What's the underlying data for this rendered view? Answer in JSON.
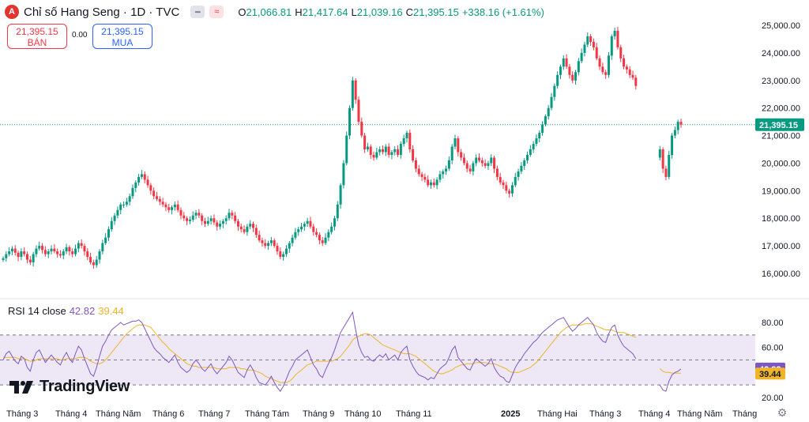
{
  "header": {
    "logo_letter": "A",
    "title": "Chỉ số Hang Seng · 1D · TVC",
    "btn1": "━",
    "btn2": "≈",
    "o_label": "O",
    "o": "21,066.81",
    "h_label": "H",
    "h": "21,417.64",
    "l_label": "L",
    "l": "21,039.16",
    "c_label": "C",
    "c": "21,395.15",
    "chg": "+338.16 (+1.61%)"
  },
  "sell": {
    "price": "21,395.15",
    "label": "BÁN"
  },
  "buy": {
    "price": "21,395.15",
    "label": "MUA"
  },
  "spread": "0.00",
  "rsi": {
    "label": "RSI 14 close",
    "value": "42.82",
    "ma": "39.44"
  },
  "brand": "TradingView",
  "colors": {
    "up": "#089981",
    "down": "#f23645",
    "rsi": "#7e57c2",
    "rsi_ma": "#f0b429",
    "band": "#ede7f6",
    "accent": "#2962ff"
  },
  "chart_data": [
    {
      "type": "candlestick",
      "title": "",
      "ylim": [
        15500,
        25300
      ],
      "y_ticks": [
        16000,
        17000,
        18000,
        19000,
        20000,
        21000,
        22000,
        23000,
        24000,
        25000
      ],
      "y_tick_labels": [
        "16,000.00",
        "17,000.00",
        "18,000.00",
        "19,000.00",
        "20,000.00",
        "21,000.00",
        "22,000.00",
        "23,000.00",
        "24,000.00",
        "25,000.00"
      ],
      "last_price": 21395.15,
      "last_price_label": "21,395.15",
      "x_labels": [
        "Tháng 3",
        "Tháng 4",
        "Tháng Năm",
        "Tháng 6",
        "Tháng 7",
        "Tháng Tám",
        "Tháng 9",
        "Tháng 10",
        "Tháng 11",
        "2025",
        "Tháng Hai",
        "Tháng 3",
        "Tháng 4",
        "Tháng Năm",
        "Tháng"
      ],
      "closes": [
        16550,
        16700,
        16800,
        16900,
        16750,
        16600,
        16800,
        16700,
        16500,
        16400,
        16700,
        16900,
        17000,
        16850,
        16700,
        16800,
        16900,
        16800,
        16700,
        16650,
        16800,
        16950,
        16800,
        16700,
        16900,
        17100,
        17000,
        16800,
        16600,
        16400,
        16300,
        16500,
        16800,
        17100,
        17300,
        17600,
        17900,
        18100,
        18300,
        18500,
        18500,
        18600,
        18800,
        19100,
        19300,
        19500,
        19600,
        19400,
        19200,
        19000,
        18800,
        18700,
        18600,
        18500,
        18400,
        18300,
        18400,
        18500,
        18300,
        18100,
        18000,
        17900,
        17950,
        18100,
        18200,
        18100,
        17900,
        17800,
        17900,
        18000,
        17850,
        17700,
        17800,
        17900,
        18000,
        18200,
        18100,
        17900,
        17700,
        17600,
        17500,
        17700,
        17800,
        17650,
        17400,
        17200,
        17100,
        17000,
        17100,
        17200,
        17000,
        16800,
        16600,
        16700,
        16900,
        17100,
        17300,
        17500,
        17600,
        17700,
        17800,
        17900,
        17700,
        17500,
        17400,
        17200,
        17100,
        17300,
        17500,
        17700,
        18000,
        18500,
        19200,
        20000,
        21000,
        22000,
        23000,
        22300,
        21500,
        21000,
        20500,
        20600,
        20300,
        20200,
        20400,
        20500,
        20400,
        20600,
        20300,
        20400,
        20500,
        20300,
        20700,
        20900,
        21100,
        20500,
        20100,
        19800,
        19600,
        19500,
        19400,
        19200,
        19300,
        19200,
        19400,
        19600,
        19700,
        19800,
        20100,
        20600,
        20900,
        20400,
        20200,
        20000,
        19800,
        19700,
        20000,
        20200,
        20100,
        20000,
        19900,
        20000,
        20200,
        19800,
        19500,
        19300,
        19200,
        19000,
        18900,
        19200,
        19500,
        19700,
        19900,
        20100,
        20300,
        20500,
        20700,
        20900,
        21100,
        21400,
        21700,
        22000,
        22400,
        22800,
        23200,
        23500,
        23800,
        23500,
        23200,
        23000,
        23300,
        23700,
        24000,
        24300,
        24600,
        24400,
        24200,
        23800,
        23500,
        23300,
        23200,
        23900,
        24600,
        24800,
        24200,
        23800,
        23500,
        23400,
        23200,
        23100,
        22800,
        null,
        null,
        null,
        null,
        null,
        null,
        null,
        20500,
        19800,
        19500,
        20300,
        21000,
        21200,
        21500,
        21395
      ]
    },
    {
      "type": "line",
      "title": "RSI 14 close",
      "ylim": [
        20,
        90
      ],
      "y_ticks": [
        20,
        40,
        60,
        80
      ],
      "y_tick_labels": [
        "20.00",
        "40.00",
        "60.00",
        "80.00"
      ],
      "band": [
        30,
        70
      ],
      "midline": 50,
      "series": [
        {
          "name": "RSI",
          "last": 42.82,
          "last_label": "42.82",
          "values": [
            50,
            55,
            57,
            53,
            49,
            47,
            53,
            51,
            44,
            41,
            50,
            56,
            58,
            53,
            48,
            51,
            54,
            51,
            48,
            46,
            52,
            56,
            51,
            48,
            55,
            61,
            58,
            51,
            45,
            39,
            37,
            44,
            53,
            61,
            65,
            70,
            74,
            76,
            78,
            80,
            78,
            79,
            80,
            81,
            81,
            82,
            80,
            75,
            70,
            65,
            60,
            57,
            55,
            52,
            50,
            48,
            51,
            54,
            48,
            44,
            42,
            40,
            42,
            47,
            50,
            47,
            43,
            41,
            44,
            47,
            42,
            39,
            42,
            45,
            48,
            53,
            50,
            45,
            40,
            38,
            36,
            42,
            46,
            42,
            36,
            32,
            31,
            30,
            33,
            37,
            32,
            28,
            25,
            29,
            35,
            41,
            45,
            50,
            52,
            54,
            56,
            58,
            52,
            46,
            43,
            38,
            36,
            42,
            47,
            52,
            58,
            65,
            72,
            76,
            80,
            84,
            88,
            74,
            62,
            56,
            52,
            53,
            50,
            49,
            52,
            54,
            52,
            55,
            50,
            52,
            54,
            50,
            56,
            59,
            61,
            50,
            45,
            41,
            38,
            37,
            36,
            34,
            36,
            35,
            39,
            43,
            45,
            47,
            52,
            58,
            61,
            52,
            49,
            46,
            43,
            42,
            47,
            51,
            49,
            47,
            45,
            47,
            51,
            44,
            40,
            37,
            36,
            33,
            32,
            38,
            44,
            48,
            51,
            55,
            58,
            61,
            64,
            66,
            69,
            72,
            74,
            76,
            78,
            80,
            82,
            83,
            84,
            80,
            76,
            73,
            75,
            78,
            80,
            82,
            84,
            81,
            78,
            72,
            68,
            65,
            64,
            71,
            76,
            78,
            70,
            65,
            61,
            59,
            57,
            55,
            51,
            null,
            null,
            null,
            null,
            null,
            null,
            null,
            30,
            26,
            25,
            33,
            38,
            40,
            41,
            42.82
          ]
        },
        {
          "name": "MA",
          "last": 39.44,
          "last_label": "39.44",
          "values": [
            52,
            52,
            52,
            52,
            52,
            51,
            51,
            51,
            50,
            49,
            49,
            50,
            51,
            51,
            51,
            51,
            51,
            51,
            51,
            50,
            50,
            51,
            51,
            51,
            51,
            52,
            52,
            52,
            51,
            49,
            48,
            47,
            47,
            48,
            50,
            53,
            56,
            59,
            62,
            65,
            68,
            71,
            73,
            75,
            77,
            78,
            78,
            78,
            77,
            76,
            73,
            70,
            67,
            64,
            62,
            59,
            57,
            55,
            53,
            51,
            49,
            47,
            46,
            45,
            45,
            44,
            44,
            44,
            44,
            44,
            44,
            43,
            43,
            43,
            43,
            44,
            44,
            44,
            44,
            43,
            43,
            42,
            42,
            42,
            41,
            40,
            39,
            37,
            36,
            35,
            34,
            33,
            32,
            32,
            32,
            33,
            35,
            38,
            40,
            42,
            44,
            46,
            47,
            48,
            49,
            49,
            49,
            49,
            49,
            49,
            50,
            51,
            53,
            56,
            59,
            62,
            66,
            68,
            69,
            70,
            71,
            71,
            70,
            68,
            66,
            64,
            62,
            61,
            60,
            59,
            58,
            57,
            56,
            55,
            55,
            55,
            54,
            53,
            51,
            49,
            47,
            45,
            43,
            41,
            40,
            39,
            39,
            40,
            41,
            42,
            44,
            45,
            46,
            46,
            47,
            47,
            47,
            48,
            48,
            48,
            48,
            47,
            47,
            47,
            46,
            45,
            44,
            43,
            41,
            40,
            40,
            40,
            41,
            42,
            43,
            44,
            46,
            48,
            51,
            54,
            57,
            60,
            63,
            66,
            69,
            72,
            74,
            76,
            77,
            78,
            78,
            78,
            78,
            79,
            79,
            79,
            78,
            77,
            76,
            75,
            74,
            74,
            74,
            73,
            72,
            72,
            72,
            71,
            70,
            69,
            68,
            null,
            null,
            null,
            null,
            null,
            null,
            null,
            43,
            41,
            40,
            40,
            39.5,
            39.5,
            39.4,
            39.44
          ]
        }
      ]
    }
  ]
}
